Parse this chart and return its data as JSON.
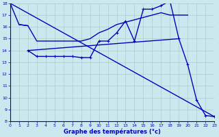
{
  "xlabel": "Graphe des températures (°c)",
  "xlim": [
    0,
    23
  ],
  "ylim": [
    8,
    18
  ],
  "yticks": [
    8,
    9,
    10,
    11,
    12,
    13,
    14,
    15,
    16,
    17,
    18
  ],
  "xticks": [
    0,
    1,
    2,
    3,
    4,
    5,
    6,
    7,
    8,
    9,
    10,
    11,
    12,
    13,
    14,
    15,
    16,
    17,
    18,
    19,
    20,
    21,
    22,
    23
  ],
  "bg_color": "#cce8ee",
  "line_color": "#0000bb",
  "grid_color": "#aacccc",
  "line1_x": [
    0,
    1,
    2
  ],
  "line1_y": [
    18,
    16.2,
    16.1
  ],
  "line2_x": [
    2,
    3,
    4,
    5,
    6,
    7,
    8,
    9,
    10,
    11,
    12,
    13,
    14,
    15,
    16,
    17,
    18,
    19,
    20,
    21,
    22,
    23
  ],
  "line2_y": [
    14.0,
    13.5,
    13.5,
    13.5,
    13.5,
    13.5,
    13.4,
    13.4,
    14.8,
    14.8,
    15.5,
    16.5,
    14.8,
    17.5,
    17.5,
    17.8,
    18.2,
    15.0,
    12.8,
    9.8,
    8.5,
    8.4
  ],
  "line3_x": [
    1,
    2,
    3,
    4,
    5,
    6,
    7,
    8,
    9,
    10,
    11,
    12,
    13,
    14,
    15,
    16,
    17,
    18,
    19,
    20
  ],
  "line3_y": [
    16.2,
    16.1,
    14.8,
    14.8,
    14.8,
    14.8,
    14.8,
    14.8,
    15.0,
    15.5,
    15.8,
    16.2,
    16.4,
    16.6,
    16.8,
    17.0,
    17.2,
    17.0,
    17.0,
    17.0
  ],
  "line4_x": [
    0,
    23
  ],
  "line4_y": [
    18,
    8.4
  ],
  "line5_x": [
    2,
    19
  ],
  "line5_y": [
    14.0,
    15.0
  ]
}
